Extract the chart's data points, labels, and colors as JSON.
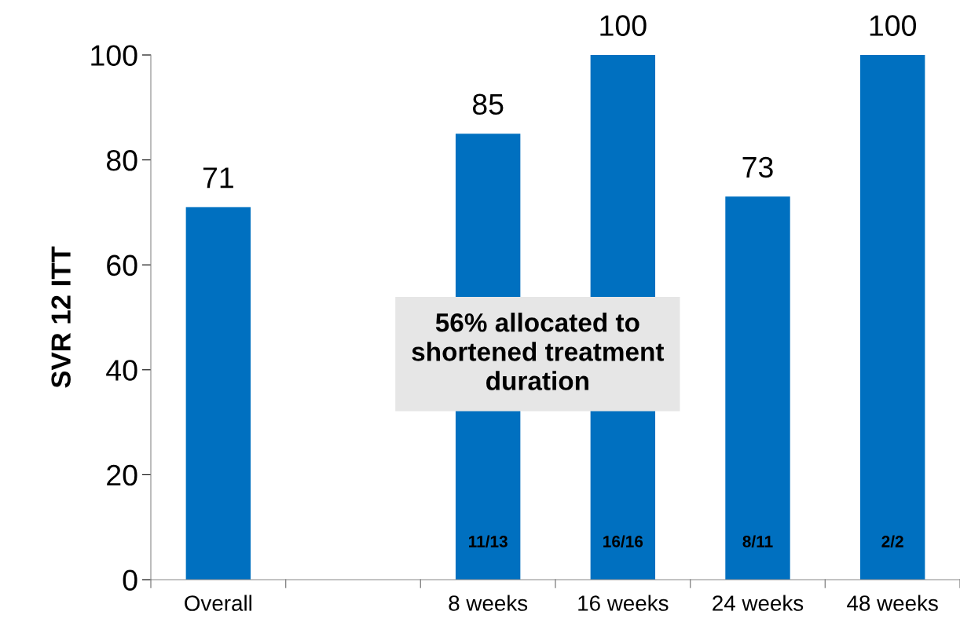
{
  "chart_data": {
    "type": "bar",
    "ylabel": "SVR 12 ITT",
    "categories": [
      "Overall",
      null,
      "8 weeks",
      "16 weeks",
      "24 weeks",
      "48 weeks"
    ],
    "values": [
      71,
      null,
      85,
      100,
      73,
      100
    ],
    "color": "#0070c0",
    "ylim": [
      0,
      100
    ],
    "yticks": [
      0,
      20,
      40,
      60,
      80,
      100
    ],
    "grid": false,
    "data_labels": true,
    "annotations": [
      "56% allocated to shortened treatment duration",
      "11/13",
      "16/16",
      "8/11",
      "2/2"
    ]
  }
}
